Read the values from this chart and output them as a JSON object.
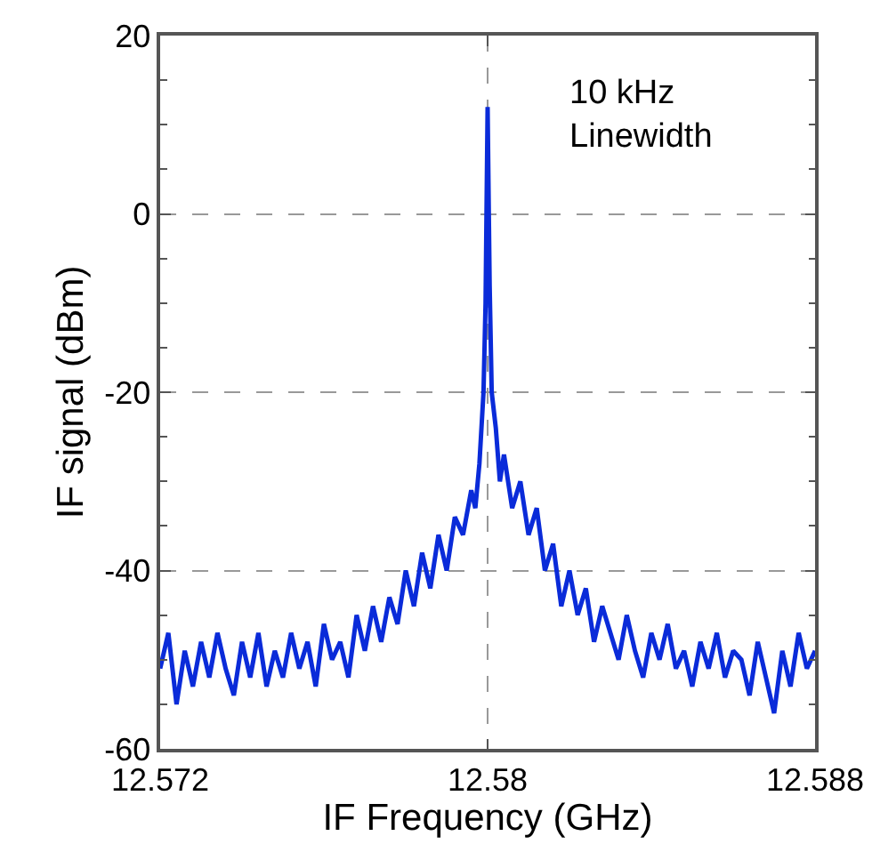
{
  "chart_data": {
    "type": "line",
    "xlabel": "IF Frequency (GHz)",
    "ylabel": "IF signal (dBm)",
    "annotations": [
      "10 kHz Linewidth"
    ],
    "xlim": [
      12.572,
      12.588
    ],
    "xticks": [
      12.572,
      12.58,
      12.588
    ],
    "ylim": [
      -60,
      20
    ],
    "yticks": [
      -60,
      {
        "value": -55,
        "label": null
      },
      -40,
      {
        "value": -45,
        "label": null
      },
      {
        "value": -50,
        "label": null
      },
      {
        "value": -35,
        "label": null
      },
      {
        "value": -30,
        "label": null
      },
      {
        "value": -25,
        "label": null
      },
      -20,
      {
        "value": -15,
        "label": null
      },
      {
        "value": -10,
        "label": null
      },
      {
        "value": -5,
        "label": null
      },
      0,
      {
        "value": 5,
        "label": null
      },
      {
        "value": 10,
        "label": null
      },
      {
        "value": 15,
        "label": null
      },
      20
    ],
    "grid": true,
    "marker": "none",
    "line_style": "solid",
    "series": [
      {
        "color": "#0a2bd9",
        "x": [
          12.572,
          12.5722,
          12.5724,
          12.5726,
          12.5728,
          12.573,
          12.5732,
          12.5734,
          12.5736,
          12.5738,
          12.574,
          12.5742,
          12.5744,
          12.5746,
          12.5748,
          12.575,
          12.5752,
          12.5754,
          12.5756,
          12.5758,
          12.576,
          12.5762,
          12.5764,
          12.5766,
          12.5768,
          12.577,
          12.5772,
          12.5774,
          12.5776,
          12.5778,
          12.578,
          12.5782,
          12.5784,
          12.5786,
          12.5788,
          12.579,
          12.5792,
          12.5794,
          12.5796,
          12.5797,
          12.5798,
          12.5799,
          12.57995,
          12.58,
          12.58005,
          12.5801,
          12.5802,
          12.5803,
          12.5804,
          12.5806,
          12.5808,
          12.581,
          12.5812,
          12.5814,
          12.5816,
          12.5818,
          12.582,
          12.5822,
          12.5824,
          12.5826,
          12.5828,
          12.583,
          12.5832,
          12.5834,
          12.5836,
          12.5838,
          12.584,
          12.5842,
          12.5844,
          12.5846,
          12.5848,
          12.585,
          12.5852,
          12.5854,
          12.5856,
          12.5858,
          12.586,
          12.5862,
          12.5864,
          12.5866,
          12.5868,
          12.587,
          12.5872,
          12.5874,
          12.5876,
          12.5878,
          12.588
        ],
        "values": [
          -51,
          -47,
          -55,
          -49,
          -53,
          -48,
          -52,
          -47,
          -51,
          -54,
          -48,
          -52,
          -47,
          -53,
          -49,
          -52,
          -47,
          -51,
          -48,
          -53,
          -46,
          -50,
          -48,
          -52,
          -45,
          -49,
          -44,
          -48,
          -43,
          -46,
          -40,
          -44,
          -38,
          -42,
          -36,
          -40,
          -34,
          -36,
          -31,
          -33,
          -28,
          -20,
          -10,
          12,
          -8,
          -20,
          -24,
          -30,
          -27,
          -33,
          -30,
          -36,
          -33,
          -40,
          -37,
          -44,
          -40,
          -45,
          -42,
          -48,
          -44,
          -47,
          -50,
          -45,
          -49,
          -52,
          -47,
          -50,
          -46,
          -51,
          -49,
          -53,
          -48,
          -51,
          -47,
          -52,
          -49,
          -50,
          -54,
          -48,
          -52,
          -56,
          -49,
          -53,
          -47,
          -51,
          -49
        ]
      }
    ]
  }
}
